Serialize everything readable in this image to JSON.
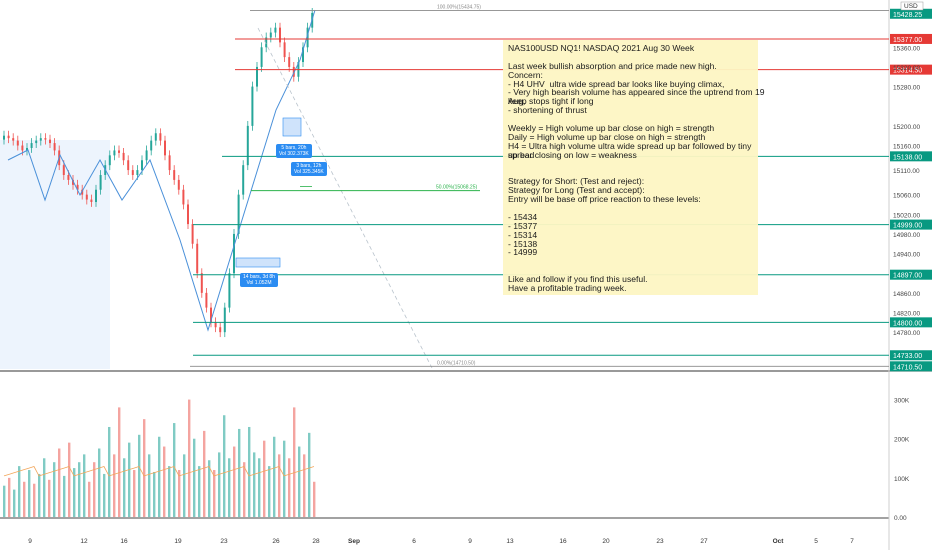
{
  "chart_data": {
    "type": "candlestick",
    "symbol": "NAS100USD",
    "currency_badge": "USD",
    "price_axis": {
      "ticks": [
        15360.0,
        15320.0,
        15280.0,
        15200.0,
        15160.0,
        15110.0,
        15060.0,
        15020.0,
        14980.0,
        14940.0,
        14860.0,
        14820.0,
        14780.0
      ],
      "range": [
        14705,
        15440
      ]
    },
    "volume_axis": {
      "ticks": [
        "300K",
        "200K",
        "100K",
        "0.00"
      ],
      "range": [
        0,
        350000
      ]
    },
    "time_axis": {
      "labels": [
        "9",
        "12",
        "16",
        "19",
        "23",
        "26",
        "28",
        "Sep",
        "6",
        "9",
        "13",
        "16",
        "20",
        "23",
        "27",
        "Oct",
        "5",
        "7"
      ]
    },
    "levels": [
      {
        "label": "15377.00",
        "value": 15377,
        "color": "#e53935"
      },
      {
        "label": "15314.50",
        "value": 15314.5,
        "color": "#e53935"
      },
      {
        "label": "15138.00",
        "value": 15138,
        "color": "#089981"
      },
      {
        "label": "14999.00",
        "value": 14999,
        "color": "#089981"
      },
      {
        "label": "14897.00",
        "value": 14897,
        "color": "#089981"
      },
      {
        "label": "14800.00",
        "value": 14800,
        "color": "#089981"
      },
      {
        "label": "14733.00",
        "value": 14733,
        "color": "#089981"
      }
    ],
    "price_labels": [
      {
        "label": "15428.25",
        "value": 15428.25,
        "color": "#089981"
      },
      {
        "label": "14710.50",
        "value": 14710.5,
        "color": "#089981"
      }
    ],
    "fib": [
      {
        "label": "100.00%(15434.75)",
        "value": 15434.75
      },
      {
        "label": "50.00%(15068.25)",
        "value": 15068.25
      },
      {
        "label": "0.00%(14710.50)",
        "value": 14710.5
      }
    ],
    "annotations": [
      {
        "lines": [
          "5 bars, 20h",
          "Vol 302.373K"
        ]
      },
      {
        "lines": [
          "3 bars, 12h",
          "Vol 325.345K"
        ]
      },
      {
        "lines": [
          "14 bars, 3d 8h",
          "Vol 1.052M"
        ]
      }
    ],
    "volume": [
      {
        "x": 1,
        "v": 80,
        "up": true
      },
      {
        "x": 2,
        "v": 100,
        "up": false
      },
      {
        "x": 3,
        "v": 70,
        "up": true
      },
      {
        "x": 4,
        "v": 130,
        "up": true
      },
      {
        "x": 5,
        "v": 90,
        "up": false
      },
      {
        "x": 6,
        "v": 120,
        "up": true
      },
      {
        "x": 7,
        "v": 85,
        "up": false
      },
      {
        "x": 8,
        "v": 110,
        "up": true
      },
      {
        "x": 9,
        "v": 150,
        "up": true
      },
      {
        "x": 10,
        "v": 95,
        "up": false
      },
      {
        "x": 11,
        "v": 140,
        "up": true
      },
      {
        "x": 12,
        "v": 175,
        "up": false
      },
      {
        "x": 13,
        "v": 105,
        "up": true
      },
      {
        "x": 14,
        "v": 190,
        "up": false
      },
      {
        "x": 15,
        "v": 125,
        "up": true
      },
      {
        "x": 16,
        "v": 140,
        "up": true
      },
      {
        "x": 17,
        "v": 160,
        "up": true
      },
      {
        "x": 18,
        "v": 90,
        "up": false
      },
      {
        "x": 19,
        "v": 140,
        "up": false
      },
      {
        "x": 20,
        "v": 175,
        "up": true
      },
      {
        "x": 21,
        "v": 110,
        "up": true
      },
      {
        "x": 22,
        "v": 230,
        "up": true
      },
      {
        "x": 23,
        "v": 160,
        "up": false
      },
      {
        "x": 24,
        "v": 280,
        "up": false
      },
      {
        "x": 25,
        "v": 150,
        "up": true
      },
      {
        "x": 26,
        "v": 190,
        "up": true
      },
      {
        "x": 27,
        "v": 120,
        "up": false
      },
      {
        "x": 28,
        "v": 210,
        "up": true
      },
      {
        "x": 29,
        "v": 250,
        "up": false
      },
      {
        "x": 30,
        "v": 160,
        "up": true
      },
      {
        "x": 31,
        "v": 115,
        "up": true
      },
      {
        "x": 32,
        "v": 205,
        "up": true
      },
      {
        "x": 33,
        "v": 180,
        "up": false
      },
      {
        "x": 34,
        "v": 130,
        "up": true
      },
      {
        "x": 35,
        "v": 240,
        "up": true
      },
      {
        "x": 36,
        "v": 120,
        "up": false
      },
      {
        "x": 37,
        "v": 160,
        "up": true
      },
      {
        "x": 38,
        "v": 300,
        "up": false
      },
      {
        "x": 39,
        "v": 200,
        "up": true
      },
      {
        "x": 40,
        "v": 130,
        "up": true
      },
      {
        "x": 41,
        "v": 220,
        "up": false
      },
      {
        "x": 42,
        "v": 145,
        "up": true
      },
      {
        "x": 43,
        "v": 120,
        "up": false
      },
      {
        "x": 44,
        "v": 165,
        "up": true
      },
      {
        "x": 45,
        "v": 260,
        "up": true
      },
      {
        "x": 46,
        "v": 150,
        "up": true
      },
      {
        "x": 47,
        "v": 180,
        "up": false
      },
      {
        "x": 48,
        "v": 225,
        "up": true
      },
      {
        "x": 49,
        "v": 140,
        "up": false
      },
      {
        "x": 50,
        "v": 230,
        "up": true
      },
      {
        "x": 51,
        "v": 165,
        "up": true
      },
      {
        "x": 52,
        "v": 150,
        "up": true
      },
      {
        "x": 53,
        "v": 195,
        "up": false
      },
      {
        "x": 54,
        "v": 130,
        "up": true
      },
      {
        "x": 55,
        "v": 205,
        "up": true
      },
      {
        "x": 56,
        "v": 160,
        "up": false
      },
      {
        "x": 57,
        "v": 195,
        "up": true
      },
      {
        "x": 58,
        "v": 150,
        "up": false
      },
      {
        "x": 59,
        "v": 280,
        "up": false
      },
      {
        "x": 60,
        "v": 180,
        "up": true
      },
      {
        "x": 61,
        "v": 160,
        "up": false
      },
      {
        "x": 62,
        "v": 215,
        "up": true
      },
      {
        "x": 63,
        "v": 90,
        "up": false
      }
    ]
  },
  "notes": {
    "lines": [
      "NAS100USD NQ1! NASDAQ 2021 Aug 30 Week",
      "",
      "Last week bullish absorption and price made new high.",
      "Concern:",
      "- H4 UHV  ultra wide spread bar looks like buying climax,",
      "- Very high bearish volume has appeared since the uptrend from 19 Aug,",
      "keep stops tight if long",
      "- shortening of thrust",
      "",
      "Weekly = High volume up bar close on high = strength",
      "Daily = High volume up bar close on high = strength",
      "H4 = Ultra high volume ultra wide spread up bar followed by tiny spread",
      "up bar closing on low = weakness",
      "",
      "",
      "Strategy for Short: (Test and reject):",
      "Strategy for Long (Test and accept):",
      "Entry will be base off price reaction to these levels:",
      "",
      "- 15434",
      "- 15377",
      "- 15314",
      "- 15138",
      "- 14999",
      "",
      "",
      "Like and follow if you find this useful.",
      "Have a profitable trading week."
    ]
  },
  "colors": {
    "up": "#26a69a",
    "down": "#ef5350",
    "up_vol": "#80cbc4",
    "down_vol": "#f4a4a0",
    "line": "#4a90d9"
  }
}
